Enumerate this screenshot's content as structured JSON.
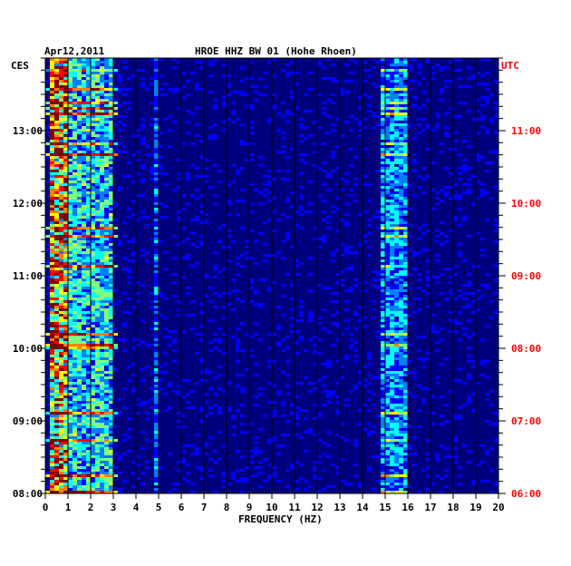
{
  "header": {
    "date": "Apr12,2011",
    "station": "HROE HHZ BW 01 (Hohe Rhoen)"
  },
  "left_axis": {
    "zone": "CES",
    "ticks": [
      "13:00",
      "12:00",
      "11:00",
      "10:00",
      "09:00",
      "08:00"
    ]
  },
  "right_axis": {
    "zone": "UTC",
    "ticks": [
      "11:00",
      "10:00",
      "09:00",
      "08:00",
      "07:00",
      "06:00"
    ]
  },
  "colors": {
    "left_axis": "#000000",
    "right_axis": "#ff0000",
    "background": "#00007f"
  },
  "chart_data": {
    "type": "heatmap",
    "title": "HROE HHZ BW 01 (Hohe Rhoen)",
    "date": "Apr12,2011",
    "xlabel": "FREQUENCY (HZ)",
    "x_ticks": [
      "0",
      "1",
      "2",
      "3",
      "4",
      "5",
      "6",
      "7",
      "8",
      "9",
      "10",
      "11",
      "12",
      "13",
      "14",
      "15",
      "16",
      "17",
      "18",
      "19",
      "20"
    ],
    "xlim": [
      0,
      20
    ],
    "left_time_zone": "CES",
    "left_time_range": [
      "08:00",
      "14:00"
    ],
    "right_time_zone": "UTC",
    "right_time_range": [
      "06:00",
      "12:00"
    ],
    "colormap": [
      "#00007f",
      "#0000ff",
      "#007fff",
      "#00ffff",
      "#7fff7f",
      "#ffff00",
      "#ff7f00",
      "#ff0000",
      "#7f0000"
    ],
    "energy_bands_hz": [
      {
        "from": 0.3,
        "to": 1.0,
        "level": 0.85
      },
      {
        "from": 1.0,
        "to": 2.9,
        "level": 0.45
      },
      {
        "from": 4.8,
        "to": 5.0,
        "level": 0.3
      },
      {
        "from": 14.8,
        "to": 16.0,
        "level": 0.35
      }
    ]
  }
}
